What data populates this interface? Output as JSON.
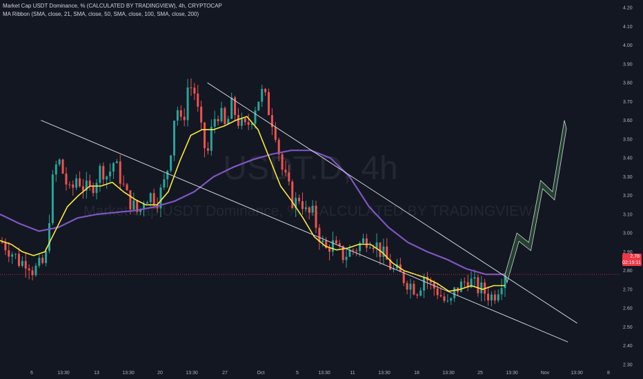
{
  "legend": {
    "main": "Market Cap USDT Dominance, % (CALCULATED BY TRADINGVIEW), 4h, CRYPTOCAP",
    "ma": "MA Ribbon (SMA, close, 21, SMA, close, 50, SMA, close, 100, SMA, close, 200)"
  },
  "watermark": {
    "symbol": "USDT.D, 4h",
    "description": "Market Cap USDT Dominance, % (CALCULATED BY TRADINGVIEW)"
  },
  "price_badge": {
    "price": "2.78",
    "countdown": "02:19:11"
  },
  "colors": {
    "background": "#131722",
    "up": "#26a69a",
    "down": "#ef5350",
    "ma_fast": "#ffeb3b",
    "ma_slow": "#7e57c2",
    "trendline": "#d1d4dc",
    "projection": "#4caf50",
    "price_line": "#f23645"
  },
  "chart_data": {
    "type": "candlestick",
    "timeframe": "4h",
    "y_axis": {
      "ticks": [
        "4.20",
        "4.10",
        "4.00",
        "3.90",
        "3.80",
        "3.70",
        "3.60",
        "3.50",
        "3.40",
        "3.30",
        "3.20",
        "3.10",
        "3.00",
        "2.90",
        "2.80",
        "2.70",
        "2.60",
        "2.50",
        "2.40",
        "2.30"
      ],
      "range": [
        2.3,
        4.2
      ]
    },
    "x_axis": {
      "ticks": [
        "6",
        "13:30",
        "13",
        "13:30",
        "20",
        "13:30",
        "27",
        "Oct",
        "5",
        "13:30",
        "11",
        "13:30",
        "18",
        "13:30",
        "25",
        "13:30",
        "Nov",
        "13:30",
        "8"
      ]
    },
    "current_price": 2.78,
    "price_path": [
      2.95,
      2.92,
      2.88,
      2.84,
      2.86,
      2.8,
      2.82,
      2.85,
      3.25,
      3.4,
      3.3,
      3.2,
      3.3,
      3.25,
      3.22,
      3.28,
      3.35,
      3.3,
      3.38,
      3.3,
      3.2,
      3.15,
      3.1,
      3.2,
      3.2,
      3.18,
      3.25,
      3.4,
      3.7,
      3.55,
      3.8,
      3.75,
      3.55,
      3.4,
      3.6,
      3.65,
      3.55,
      3.68,
      3.6,
      3.55,
      3.6,
      3.7,
      3.75,
      3.65,
      3.55,
      3.35,
      3.25,
      3.15,
      3.2,
      3.1,
      3.1,
      3.0,
      2.9,
      2.95,
      2.9,
      2.88,
      2.9,
      2.92,
      2.95,
      2.98,
      2.95,
      2.9,
      2.85,
      2.8,
      2.78,
      2.75,
      2.72,
      2.7,
      2.78,
      2.72,
      2.7,
      2.65,
      2.6,
      2.7,
      2.72,
      2.76,
      2.72,
      2.7,
      2.68,
      2.66,
      2.72,
      2.8
    ],
    "sma_21": [
      2.96,
      2.94,
      2.9,
      2.88,
      2.9,
      3.02,
      3.14,
      3.2,
      3.25,
      3.25,
      3.27,
      3.22,
      3.18,
      3.15,
      3.15,
      3.22,
      3.38,
      3.52,
      3.55,
      3.55,
      3.57,
      3.6,
      3.62,
      3.55,
      3.4,
      3.25,
      3.17,
      3.08,
      2.98,
      2.93,
      2.91,
      2.92,
      2.94,
      2.94,
      2.9,
      2.84,
      2.8,
      2.78,
      2.76,
      2.73,
      2.69,
      2.7,
      2.72,
      2.7,
      2.72,
      2.72
    ],
    "sma_100": [
      3.1,
      3.05,
      3.01,
      3.03,
      3.08,
      3.1,
      3.11,
      3.12,
      3.14,
      3.17,
      3.22,
      3.3,
      3.35,
      3.39,
      3.42,
      3.44,
      3.44,
      3.4,
      3.3,
      3.14,
      3.03,
      2.95,
      2.9,
      2.86,
      2.81,
      2.78,
      2.78
    ],
    "trendlines": [
      {
        "name": "upper",
        "from": {
          "x": "Sep 25",
          "y": 3.8
        },
        "to": {
          "x": "Nov 4",
          "y": 2.52
        }
      },
      {
        "name": "lower",
        "from": {
          "x": "Sep 7",
          "y": 3.6
        },
        "to": {
          "x": "Nov 3",
          "y": 2.42
        }
      }
    ],
    "projection": [
      2.78,
      3.0,
      2.95,
      3.28,
      3.22,
      3.6
    ],
    "grid": false,
    "legend_position": "top-left"
  }
}
